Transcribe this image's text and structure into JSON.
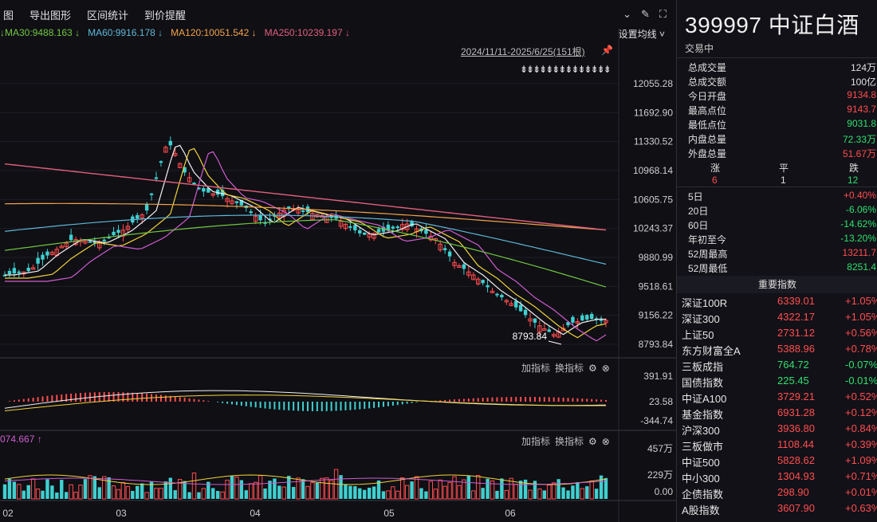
{
  "toolbar": {
    "menus": [
      "图",
      "导出图形",
      "区间统计",
      "到价提醒"
    ]
  },
  "ma_line": [
    {
      "label": "↓MA30:9488.163 ↓",
      "color": "#72c842"
    },
    {
      "label": "MA60:9916.178 ↓",
      "color": "#5fb8d8"
    },
    {
      "label": "MA120:10051.542 ↓",
      "color": "#f3a34a"
    },
    {
      "label": "MA250:10239.197 ↓",
      "color": "#e0607c"
    }
  ],
  "ma_settings": "设置均线 ˅",
  "date_range": "2024/11/11-2025/6/25(151根)",
  "annotation_arrows": "⇟⇟⇟⇟⇟⇟⇟⇟⇟⇟⇟⇟⇟⇟",
  "min_label": "8793.84",
  "panel_tools": {
    "add": "加指标",
    "swap": "换指标"
  },
  "vol_label": "074.667 ↑",
  "chart_data": {
    "type": "line",
    "price_axis": [
      "12055.28",
      "11692.90",
      "11330.52",
      "10968.14",
      "10605.75",
      "10243.37",
      "9880.99",
      "9518.61",
      "9156.22",
      "8793.84"
    ],
    "macd_axis": [
      "391.91",
      "23.58",
      "-344.74"
    ],
    "vol_axis": [
      "457万",
      "229万",
      "0.00"
    ],
    "x_ticks": [
      "02",
      "03",
      "04",
      "05",
      "06"
    ],
    "ylim": [
      8793.84,
      12055.28
    ]
  },
  "right": {
    "title": "399997 中证白酒",
    "status": "交易中",
    "stats": [
      {
        "label": "总成交量",
        "value": "124万",
        "color": "white"
      },
      {
        "label": "总成交额",
        "value": "100亿",
        "color": "white"
      },
      {
        "label": "今日开盘",
        "value": "9134.8",
        "color": "red"
      },
      {
        "label": "最高点位",
        "value": "9143.7",
        "color": "red"
      },
      {
        "label": "最低点位",
        "value": "9031.8",
        "color": "green"
      },
      {
        "label": "内盘总量",
        "value": "72.33万",
        "color": "green"
      },
      {
        "label": "外盘总量",
        "value": "51.67万",
        "color": "red"
      }
    ],
    "zpd": {
      "up_label": "涨",
      "flat_label": "平",
      "down_label": "跌",
      "up": "6",
      "flat": "1",
      "down": "12"
    },
    "periods": [
      {
        "label": "5日",
        "value": "+0.40%",
        "color": "red"
      },
      {
        "label": "20日",
        "value": "-6.06%",
        "color": "green"
      },
      {
        "label": "60日",
        "value": "-14.62%",
        "color": "green"
      },
      {
        "label": "年初至今",
        "value": "-13.20%",
        "color": "green"
      },
      {
        "label": "52周最高",
        "value": "13211.7",
        "color": "red"
      },
      {
        "label": "52周最低",
        "value": "8251.4",
        "color": "green"
      }
    ],
    "index_header": "重要指数",
    "indices": [
      {
        "name": "深证100R",
        "price": "6339.01",
        "chg": "+1.05%",
        "pc": "red",
        "cc": "red"
      },
      {
        "name": "深证300",
        "price": "4322.17",
        "chg": "+1.05%",
        "pc": "red",
        "cc": "red"
      },
      {
        "name": "上证50",
        "price": "2731.12",
        "chg": "+0.56%",
        "pc": "red",
        "cc": "red"
      },
      {
        "name": "东方财富全A",
        "price": "5388.96",
        "chg": "+0.78%",
        "pc": "red",
        "cc": "red"
      },
      {
        "name": "三板成指",
        "price": "764.72",
        "chg": "-0.07%",
        "pc": "green",
        "cc": "green"
      },
      {
        "name": "国债指数",
        "price": "225.45",
        "chg": "-0.01%",
        "pc": "green",
        "cc": "green"
      },
      {
        "name": "中证A100",
        "price": "3729.21",
        "chg": "+0.52%",
        "pc": "red",
        "cc": "red"
      },
      {
        "name": "基金指数",
        "price": "6931.28",
        "chg": "+0.12%",
        "pc": "red",
        "cc": "red"
      },
      {
        "name": "沪深300",
        "price": "3936.80",
        "chg": "+0.84%",
        "pc": "red",
        "cc": "red"
      },
      {
        "name": "三板做市",
        "price": "1108.44",
        "chg": "+0.39%",
        "pc": "red",
        "cc": "red"
      },
      {
        "name": "中证500",
        "price": "5828.62",
        "chg": "+1.09%",
        "pc": "red",
        "cc": "red"
      },
      {
        "name": "中小300",
        "price": "1304.93",
        "chg": "+0.71%",
        "pc": "red",
        "cc": "red"
      },
      {
        "name": "企债指数",
        "price": "298.90",
        "chg": "+0.01%",
        "pc": "red",
        "cc": "red"
      },
      {
        "name": "A股指数",
        "price": "3607.90",
        "chg": "+0.63%",
        "pc": "red",
        "cc": "red"
      }
    ]
  }
}
